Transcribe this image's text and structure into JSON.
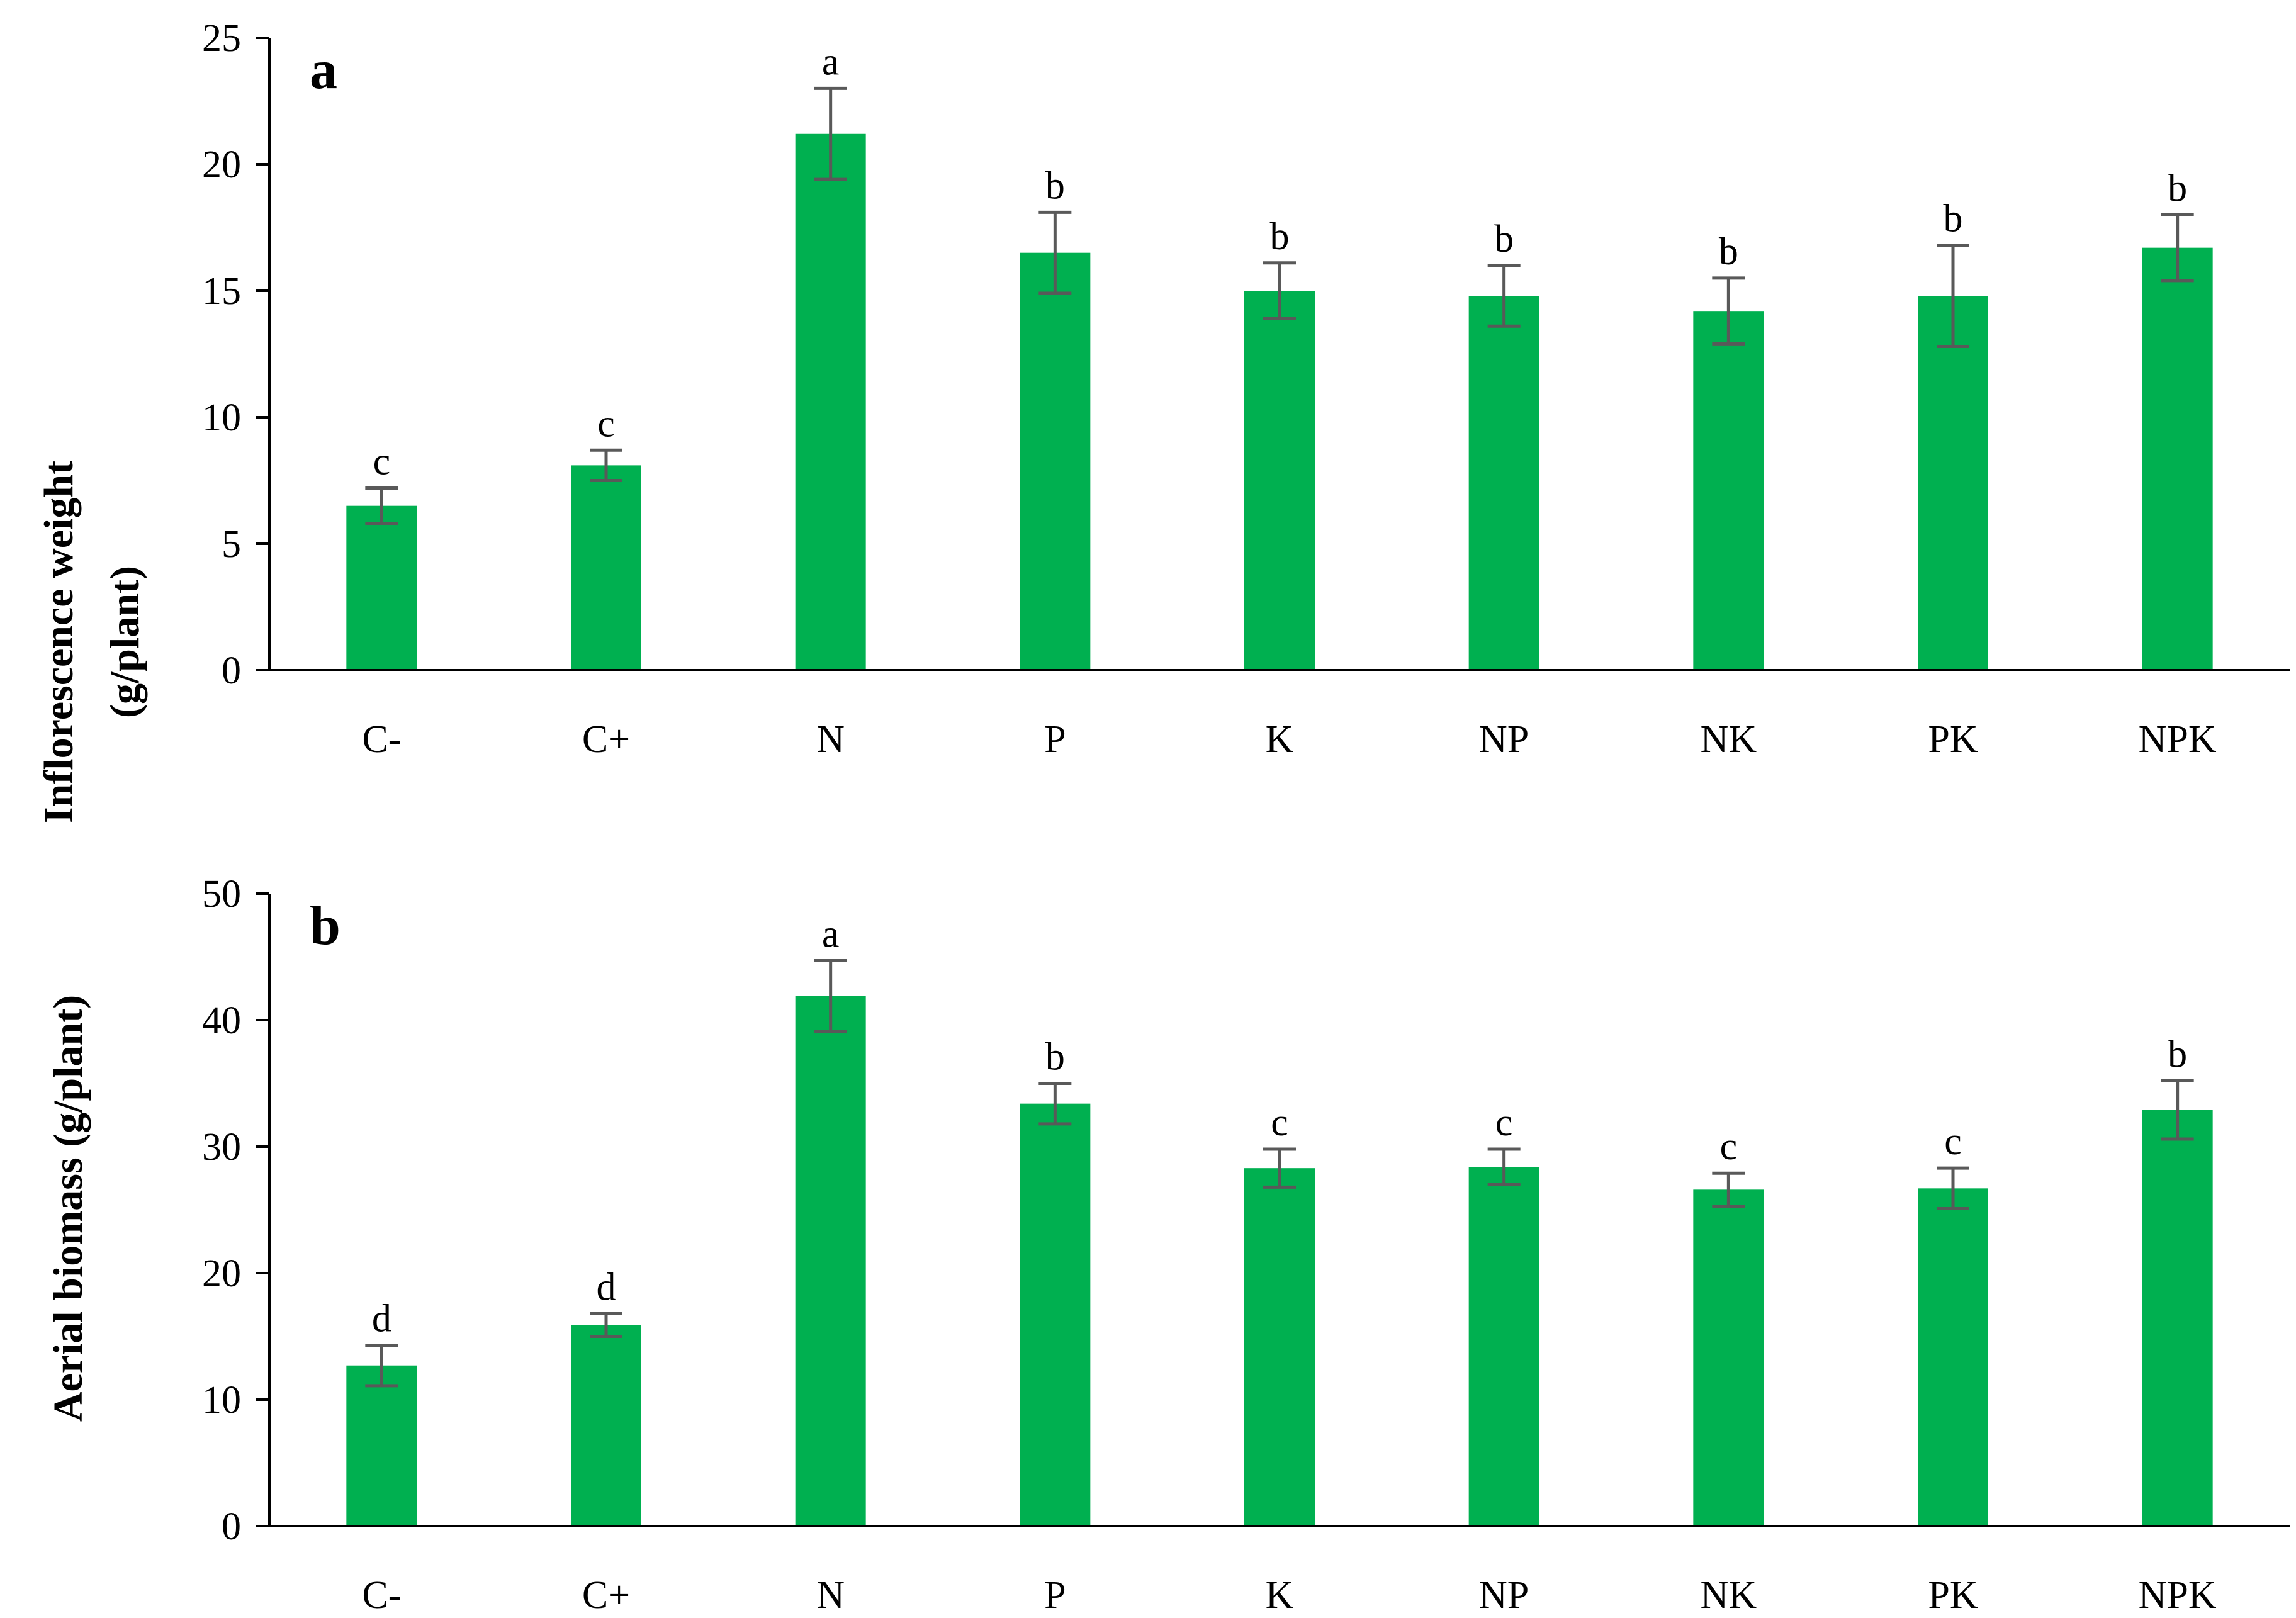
{
  "chart_data": [
    {
      "type": "bar",
      "panel_label": "a",
      "ylabel_lines": [
        "Inflorescence weight",
        "(g/plant)"
      ],
      "xlabel": "",
      "categories": [
        "C-",
        "C+",
        "N",
        "P",
        "K",
        "NP",
        "NK",
        "PK",
        "NPK"
      ],
      "values": [
        6.5,
        8.1,
        21.2,
        16.5,
        15.0,
        14.8,
        14.2,
        14.8,
        16.7
      ],
      "errors": [
        0.7,
        0.6,
        1.8,
        1.6,
        1.1,
        1.2,
        1.3,
        2.0,
        1.3
      ],
      "significance_letters": [
        "c",
        "c",
        "a",
        "b",
        "b",
        "b",
        "b",
        "b",
        "b"
      ],
      "ylim": [
        0,
        25
      ],
      "yticks": [
        "0",
        "5",
        "10",
        "15",
        "20",
        "25"
      ],
      "grid": false,
      "bar_color": "#00b050",
      "error_color": "#595959"
    },
    {
      "type": "bar",
      "panel_label": "b",
      "ylabel_lines": [
        "Aerial biomass (g/plant)"
      ],
      "xlabel": "",
      "categories": [
        "C-",
        "C+",
        "N",
        "P",
        "K",
        "NP",
        "NK",
        "PK",
        "NPK"
      ],
      "values": [
        12.7,
        15.9,
        41.9,
        33.4,
        28.3,
        28.4,
        26.6,
        26.7,
        32.9
      ],
      "errors": [
        1.6,
        0.9,
        2.8,
        1.6,
        1.5,
        1.4,
        1.3,
        1.6,
        2.3
      ],
      "significance_letters": [
        "d",
        "d",
        "a",
        "b",
        "c",
        "c",
        "c",
        "c",
        "b"
      ],
      "ylim": [
        0,
        50
      ],
      "yticks": [
        "0",
        "10",
        "20",
        "30",
        "40",
        "50"
      ],
      "grid": false,
      "bar_color": "#00b050",
      "error_color": "#595959"
    }
  ]
}
